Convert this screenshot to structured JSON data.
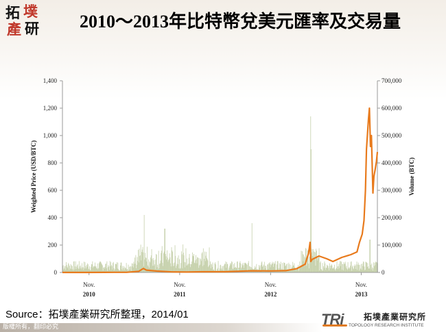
{
  "logo": {
    "chars": [
      "拓",
      "墣",
      "產",
      "研"
    ]
  },
  "title": "2010～2013年比特幣兌美元匯率及交易量",
  "source": "Source：拓墣產業研究所整理，2014/01",
  "footer": {
    "copyright": "版權所有，翻印必究"
  },
  "brand": {
    "mark": "TRi",
    "cn": "拓墣產業研究所",
    "en": "TOPOLOGY RESEARCH INSTITUTE"
  },
  "colors": {
    "price": "#e87a1c",
    "volume": "#b9c79a",
    "axis": "#9a9a9a"
  },
  "chart_data": {
    "type": "line",
    "xlabel": "",
    "y_left": {
      "label": "Weighted Price (USD/BTC)",
      "range": [
        0,
        1400
      ],
      "ticks": [
        "0",
        "200",
        "400",
        "600",
        "800",
        "1,000",
        "1,200",
        "1,400"
      ]
    },
    "y_right": {
      "label": "Volume (BTC)",
      "range": [
        0,
        700000
      ],
      "ticks": [
        "0",
        "100,000",
        "200,000",
        "300,000",
        "400,000",
        "500,000",
        "600,000",
        "700,000"
      ]
    },
    "x_range": [
      "2010-07-17",
      "2014-01-05"
    ],
    "x_ticks": [
      {
        "date": "2010-11-01",
        "month": "Nov.",
        "year": "2010"
      },
      {
        "date": "2011-11-01",
        "month": "Nov.",
        "year": "2011"
      },
      {
        "date": "2012-11-01",
        "month": "Nov.",
        "year": "2012"
      },
      {
        "date": "2013-11-01",
        "month": "Nov.",
        "year": "2013"
      }
    ],
    "series": [
      {
        "axis": "left",
        "type": "line",
        "x": [
          "2010-07-17",
          "2010-10-01",
          "2011-01-01",
          "2011-02-10",
          "2011-04-01",
          "2011-05-20",
          "2011-06-08",
          "2011-06-20",
          "2011-08-01",
          "2011-10-01",
          "2011-12-01",
          "2012-02-01",
          "2012-05-01",
          "2012-08-15",
          "2012-11-01",
          "2013-01-01",
          "2013-02-15",
          "2013-03-20",
          "2013-04-03",
          "2013-04-09",
          "2013-04-12",
          "2013-04-17",
          "2013-05-15",
          "2013-06-15",
          "2013-07-10",
          "2013-08-15",
          "2013-09-20",
          "2013-10-15",
          "2013-10-25",
          "2013-11-05",
          "2013-11-12",
          "2013-11-18",
          "2013-11-22",
          "2013-11-30",
          "2013-12-04",
          "2013-12-08",
          "2013-12-12",
          "2013-12-18",
          "2013-12-22",
          "2013-12-27",
          "2014-01-01",
          "2014-01-05"
        ],
        "y": [
          0.05,
          0.1,
          0.3,
          1,
          1,
          8,
          29,
          17,
          10,
          4,
          3,
          5,
          5,
          12,
          11,
          13,
          28,
          60,
          140,
          220,
          80,
          95,
          120,
          100,
          80,
          110,
          130,
          150,
          220,
          280,
          380,
          600,
          900,
          1120,
          1200,
          920,
          1000,
          580,
          700,
          750,
          810,
          880
        ]
      },
      {
        "axis": "right",
        "type": "bar",
        "note": "daily trading volume, dense series; peaks listed",
        "peaks": [
          {
            "x": "2011-06-10",
            "y": 210000
          },
          {
            "x": "2011-09-01",
            "y": 160000
          },
          {
            "x": "2012-08-17",
            "y": 180000
          },
          {
            "x": "2013-04-10",
            "y": 570000
          },
          {
            "x": "2013-04-12",
            "y": 450000
          },
          {
            "x": "2013-12-05",
            "y": 120000
          }
        ],
        "typical_level": 40000
      }
    ]
  }
}
